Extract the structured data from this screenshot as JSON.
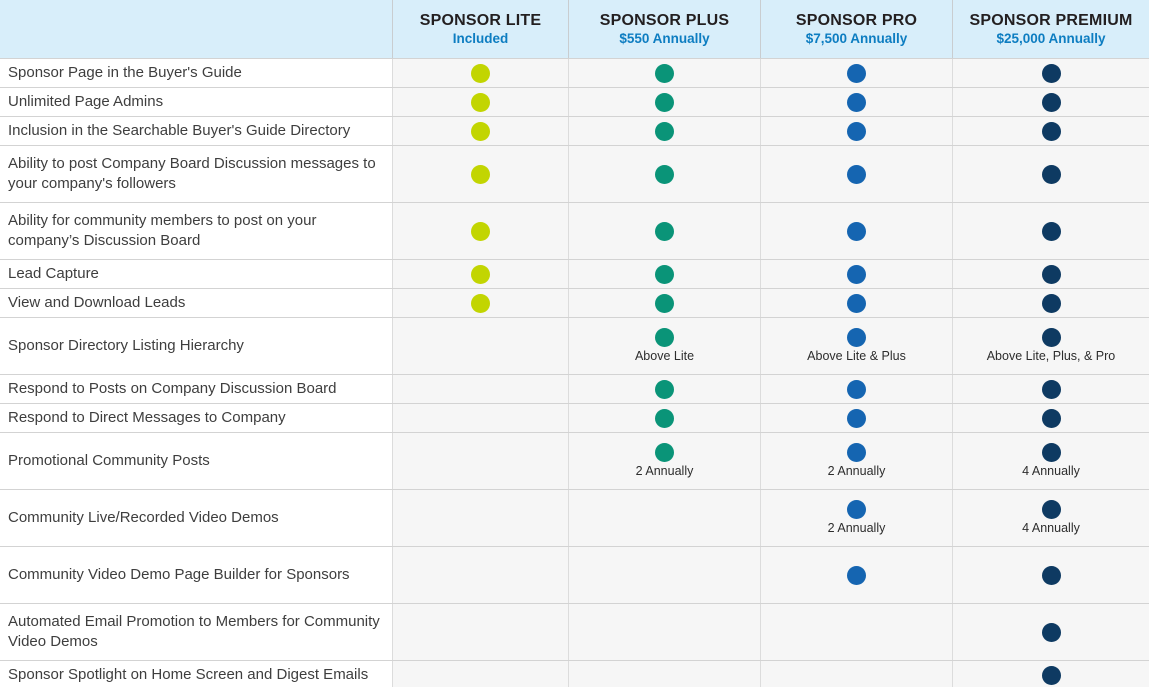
{
  "colors": {
    "lite_dot": "#c2d501",
    "plus_dot": "#0a9478",
    "pro_dot": "#1565b1",
    "premium_dot": "#0e3a62",
    "header_bg": "#d8eefa",
    "tier_name_text": "#231f20",
    "tier_price_text": "#0d7dc1"
  },
  "tiers": [
    {
      "id": "lite",
      "name": "SPONSOR LITE",
      "price": "Included"
    },
    {
      "id": "plus",
      "name": "SPONSOR PLUS",
      "price": "$550 Annually"
    },
    {
      "id": "pro",
      "name": "SPONSOR PRO",
      "price": "$7,500 Annually"
    },
    {
      "id": "premium",
      "name": "SPONSOR PREMIUM",
      "price": "$25,000 Annually"
    }
  ],
  "rows": [
    {
      "feature": "Sponsor Page in the Buyer's Guide",
      "tall": false,
      "cells": [
        {
          "dot": true,
          "caption": ""
        },
        {
          "dot": true,
          "caption": ""
        },
        {
          "dot": true,
          "caption": ""
        },
        {
          "dot": true,
          "caption": ""
        }
      ]
    },
    {
      "feature": "Unlimited Page Admins",
      "tall": false,
      "cells": [
        {
          "dot": true,
          "caption": ""
        },
        {
          "dot": true,
          "caption": ""
        },
        {
          "dot": true,
          "caption": ""
        },
        {
          "dot": true,
          "caption": ""
        }
      ]
    },
    {
      "feature": "Inclusion in the Searchable Buyer's Guide Directory",
      "tall": false,
      "cells": [
        {
          "dot": true,
          "caption": ""
        },
        {
          "dot": true,
          "caption": ""
        },
        {
          "dot": true,
          "caption": ""
        },
        {
          "dot": true,
          "caption": ""
        }
      ]
    },
    {
      "feature": "Ability to post Company Board Discussion messages to your company's followers",
      "tall": true,
      "cells": [
        {
          "dot": true,
          "caption": ""
        },
        {
          "dot": true,
          "caption": ""
        },
        {
          "dot": true,
          "caption": ""
        },
        {
          "dot": true,
          "caption": ""
        }
      ]
    },
    {
      "feature": "Ability for community members to post on your company’s Discussion Board",
      "tall": true,
      "cells": [
        {
          "dot": true,
          "caption": ""
        },
        {
          "dot": true,
          "caption": ""
        },
        {
          "dot": true,
          "caption": ""
        },
        {
          "dot": true,
          "caption": ""
        }
      ]
    },
    {
      "feature": "Lead Capture",
      "tall": false,
      "cells": [
        {
          "dot": true,
          "caption": ""
        },
        {
          "dot": true,
          "caption": ""
        },
        {
          "dot": true,
          "caption": ""
        },
        {
          "dot": true,
          "caption": ""
        }
      ]
    },
    {
      "feature": "View and Download Leads",
      "tall": false,
      "cells": [
        {
          "dot": true,
          "caption": ""
        },
        {
          "dot": true,
          "caption": ""
        },
        {
          "dot": true,
          "caption": ""
        },
        {
          "dot": true,
          "caption": ""
        }
      ]
    },
    {
      "feature": "Sponsor Directory Listing Hierarchy",
      "tall": true,
      "cells": [
        {
          "dot": false,
          "caption": ""
        },
        {
          "dot": true,
          "caption": "Above Lite"
        },
        {
          "dot": true,
          "caption": "Above Lite & Plus"
        },
        {
          "dot": true,
          "caption": "Above Lite, Plus, & Pro"
        }
      ]
    },
    {
      "feature": "Respond to Posts on Company Discussion Board",
      "tall": false,
      "cells": [
        {
          "dot": false,
          "caption": ""
        },
        {
          "dot": true,
          "caption": ""
        },
        {
          "dot": true,
          "caption": ""
        },
        {
          "dot": true,
          "caption": ""
        }
      ]
    },
    {
      "feature": "Respond to Direct Messages to Company",
      "tall": false,
      "cells": [
        {
          "dot": false,
          "caption": ""
        },
        {
          "dot": true,
          "caption": ""
        },
        {
          "dot": true,
          "caption": ""
        },
        {
          "dot": true,
          "caption": ""
        }
      ]
    },
    {
      "feature": "Promotional Community Posts",
      "tall": true,
      "cells": [
        {
          "dot": false,
          "caption": ""
        },
        {
          "dot": true,
          "caption": "2 Annually"
        },
        {
          "dot": true,
          "caption": "2 Annually"
        },
        {
          "dot": true,
          "caption": "4 Annually"
        }
      ]
    },
    {
      "feature": "Community Live/Recorded Video Demos",
      "tall": true,
      "cells": [
        {
          "dot": false,
          "caption": ""
        },
        {
          "dot": false,
          "caption": ""
        },
        {
          "dot": true,
          "caption": "2 Annually"
        },
        {
          "dot": true,
          "caption": "4 Annually"
        }
      ]
    },
    {
      "feature": "Community Video Demo Page Builder for Sponsors",
      "tall": true,
      "cells": [
        {
          "dot": false,
          "caption": ""
        },
        {
          "dot": false,
          "caption": ""
        },
        {
          "dot": true,
          "caption": ""
        },
        {
          "dot": true,
          "caption": ""
        }
      ]
    },
    {
      "feature": "Automated Email Promotion to Members for Community Video Demos",
      "tall": true,
      "cells": [
        {
          "dot": false,
          "caption": ""
        },
        {
          "dot": false,
          "caption": ""
        },
        {
          "dot": false,
          "caption": ""
        },
        {
          "dot": true,
          "caption": ""
        }
      ]
    },
    {
      "feature": "Sponsor Spotlight on Home Screen and Digest Emails",
      "tall": false,
      "cells": [
        {
          "dot": false,
          "caption": ""
        },
        {
          "dot": false,
          "caption": ""
        },
        {
          "dot": false,
          "caption": ""
        },
        {
          "dot": true,
          "caption": ""
        }
      ]
    }
  ]
}
